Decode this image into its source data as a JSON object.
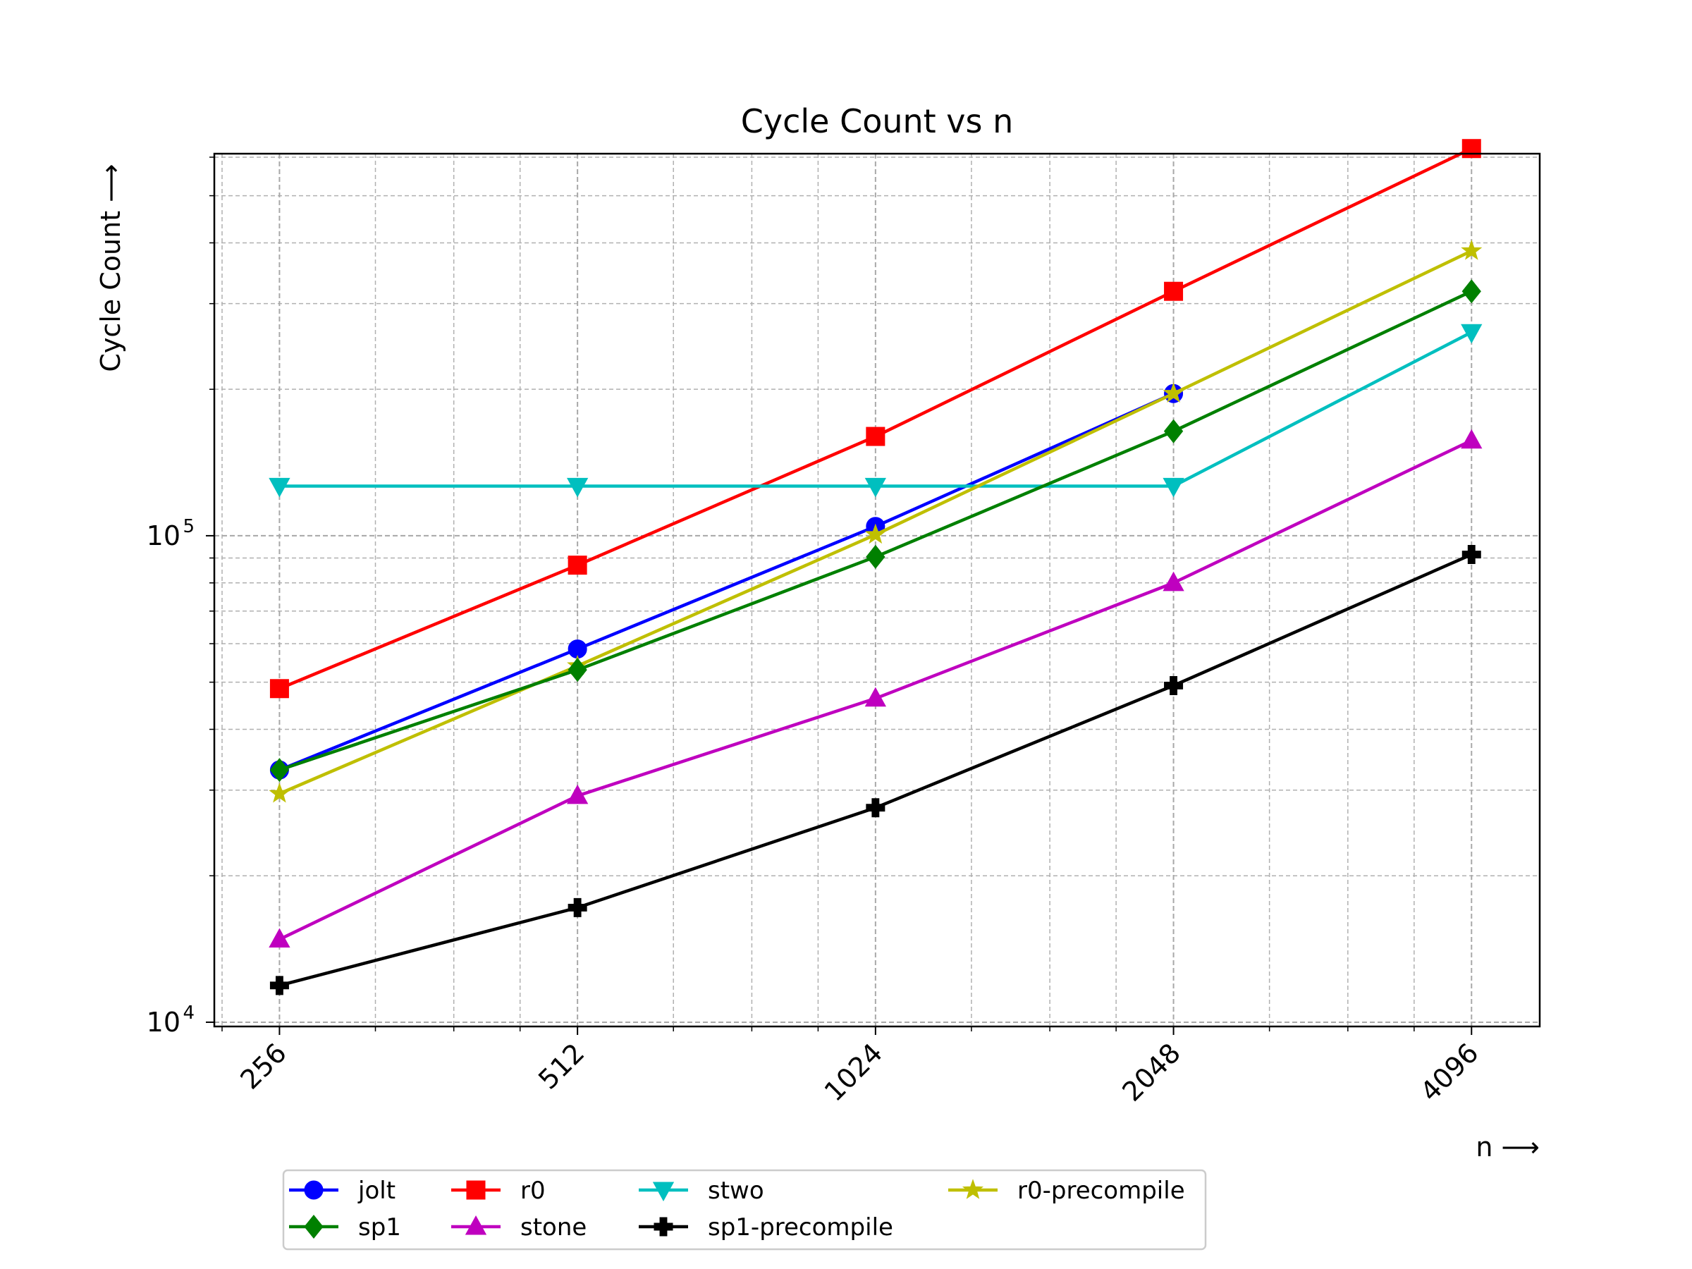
{
  "chart_data": {
    "type": "line",
    "title": "Cycle Count vs n",
    "xlabel": "n ⟶",
    "ylabel": "Cycle Count ⟶",
    "x_scale": "log2",
    "y_scale": "log10",
    "x": [
      256,
      512,
      1024,
      2048,
      4096
    ],
    "x_tick_labels": [
      "256",
      "512",
      "1024",
      "2048",
      "4096"
    ],
    "y_tick_labels": [
      {
        "value": 10000,
        "base": "10",
        "exp": "4"
      },
      {
        "value": 100000,
        "base": "10",
        "exp": "5"
      }
    ],
    "xlim": [
      220,
      4800
    ],
    "ylim": [
      9800,
      610000
    ],
    "grid": true,
    "legend_position": "bottom-center",
    "series": [
      {
        "name": "jolt",
        "color": "#0000ff",
        "marker": "circle",
        "values": [
          33000,
          58500,
          104500,
          196000,
          null
        ]
      },
      {
        "name": "r0",
        "color": "#ff0000",
        "marker": "square",
        "values": [
          48500,
          87000,
          160000,
          318000,
          625000
        ]
      },
      {
        "name": "stwo",
        "color": "#00bfbf",
        "marker": "triangle-down",
        "values": [
          126500,
          126500,
          126500,
          126500,
          262000
        ]
      },
      {
        "name": "r0-precompile",
        "color": "#bfbf00",
        "marker": "star",
        "values": [
          29500,
          54000,
          100500,
          196000,
          385000
        ]
      },
      {
        "name": "sp1",
        "color": "#008000",
        "marker": "diamond",
        "values": [
          33000,
          53000,
          90500,
          164000,
          318000
        ]
      },
      {
        "name": "stone",
        "color": "#bf00bf",
        "marker": "triangle-up",
        "values": [
          14800,
          29200,
          46300,
          80000,
          157000
        ]
      },
      {
        "name": "sp1-precompile",
        "color": "#000000",
        "marker": "plus",
        "values": [
          11900,
          17200,
          27600,
          49200,
          91500
        ]
      }
    ]
  }
}
